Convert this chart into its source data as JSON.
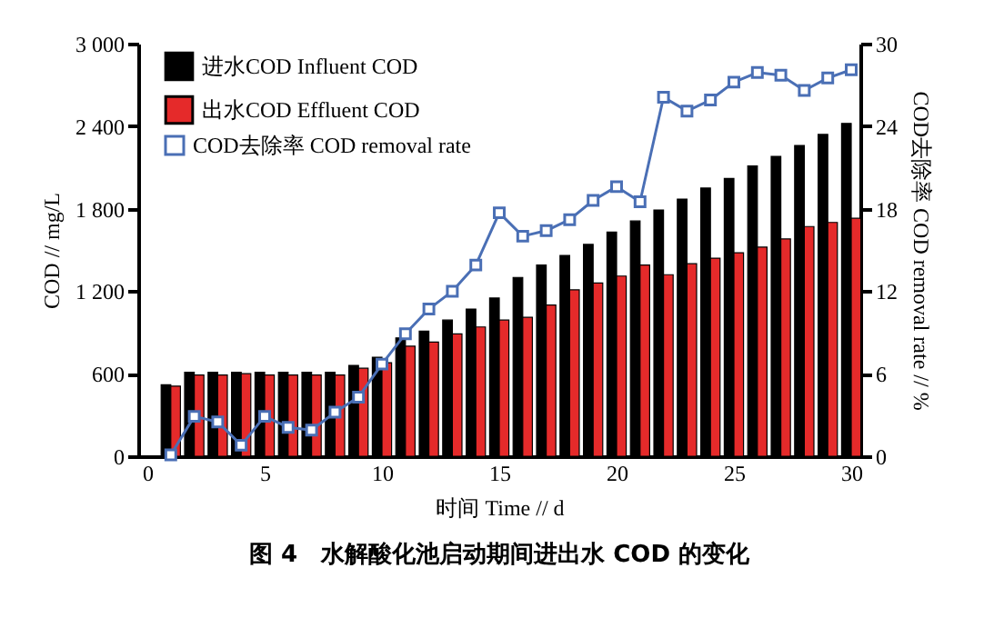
{
  "chart_data": {
    "type": "bar",
    "title": "图 4　水解酸化池启动期间进出水 COD 的变化",
    "xlabel": "时间 Time // d",
    "ylabel": "COD // mg/L",
    "y2label": "COD去除率 COD removal rate // %",
    "x": [
      1,
      2,
      3,
      4,
      5,
      6,
      7,
      8,
      9,
      10,
      11,
      12,
      13,
      14,
      15,
      16,
      17,
      18,
      19,
      20,
      21,
      22,
      23,
      24,
      25,
      26,
      27,
      28,
      29,
      30
    ],
    "series": [
      {
        "name": "进水COD Influent COD",
        "color": "#000000",
        "values": [
          520,
          610,
          610,
          610,
          610,
          610,
          610,
          610,
          660,
          720,
          860,
          910,
          990,
          1070,
          1150,
          1300,
          1390,
          1460,
          1540,
          1630,
          1710,
          1790,
          1870,
          1950,
          2020,
          2110,
          2180,
          2260,
          2340,
          2420
        ]
      },
      {
        "name": "出水COD Effluent COD",
        "color": "#e52a2a",
        "values": [
          510,
          590,
          590,
          600,
          590,
          590,
          590,
          590,
          640,
          680,
          800,
          830,
          890,
          940,
          990,
          1010,
          1100,
          1210,
          1260,
          1310,
          1390,
          1320,
          1400,
          1440,
          1480,
          1520,
          1580,
          1670,
          1700,
          1730
        ]
      },
      {
        "name": "COD去除率 COD removal rate",
        "type": "line",
        "axis": "y2",
        "color": "#4a6fb5",
        "values": [
          0.1,
          2.9,
          2.5,
          0.8,
          2.9,
          2.1,
          1.9,
          3.2,
          4.3,
          6.7,
          8.9,
          10.7,
          12.0,
          13.9,
          17.7,
          16.0,
          16.4,
          17.2,
          18.6,
          19.6,
          18.5,
          26.1,
          25.1,
          25.9,
          27.2,
          27.9,
          27.7,
          26.6,
          27.5,
          28.1
        ]
      }
    ],
    "xlim": [
      0,
      30
    ],
    "xticks": [
      0,
      5,
      10,
      15,
      20,
      25,
      30
    ],
    "ylim": [
      0,
      3000
    ],
    "yticks": [
      0,
      600,
      {
        "value": 1200,
        "label": "1 200"
      },
      {
        "value": 1800,
        "label": "1 800"
      },
      {
        "value": 2400,
        "label": "2 400"
      },
      {
        "value": 3000,
        "label": "3 000"
      }
    ],
    "y2lim": [
      0,
      30
    ],
    "y2ticks": [
      0,
      6,
      12,
      18,
      24,
      30
    ],
    "grid": false,
    "legend": "top left",
    "marker": "square",
    "line_style": "solid"
  }
}
